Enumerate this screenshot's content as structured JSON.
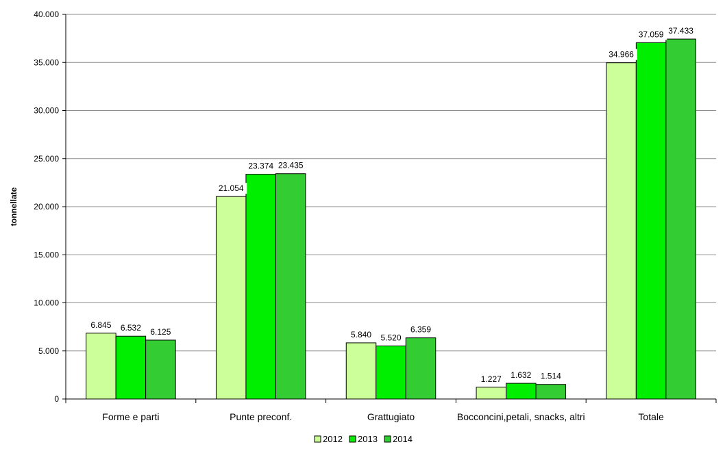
{
  "chart_data": {
    "type": "bar",
    "title": "",
    "xlabel": "",
    "ylabel": "tonnellate",
    "ylim": [
      0,
      40000
    ],
    "yticks": [
      0,
      5000,
      10000,
      15000,
      20000,
      25000,
      30000,
      35000,
      40000
    ],
    "ytick_labels": [
      "0",
      "5.000",
      "10.000",
      "15.000",
      "20.000",
      "25.000",
      "30.000",
      "35.000",
      "40.000"
    ],
    "categories": [
      "Forme e parti",
      "Punte preconf.",
      "Grattugiato",
      "Bocconcini,petali, snacks, altri",
      "Totale"
    ],
    "series": [
      {
        "name": "2012",
        "color": "#ccff99",
        "values": [
          6845,
          21054,
          5840,
          1227,
          34966
        ],
        "labels": [
          "6.845",
          "21.054",
          "5.840",
          "1.227",
          "34.966"
        ]
      },
      {
        "name": "2013",
        "color": "#00ee00",
        "values": [
          6532,
          23374,
          5520,
          1632,
          37059
        ],
        "labels": [
          "6.532",
          "23.374",
          "5.520",
          "1.632",
          "37.059"
        ]
      },
      {
        "name": "2014",
        "color": "#33cc33",
        "values": [
          6125,
          23435,
          6359,
          1514,
          37433
        ],
        "labels": [
          "6.125",
          "23.435",
          "6.359",
          "1.514",
          "37.433"
        ]
      }
    ],
    "grid": true,
    "legend_position": "bottom"
  }
}
